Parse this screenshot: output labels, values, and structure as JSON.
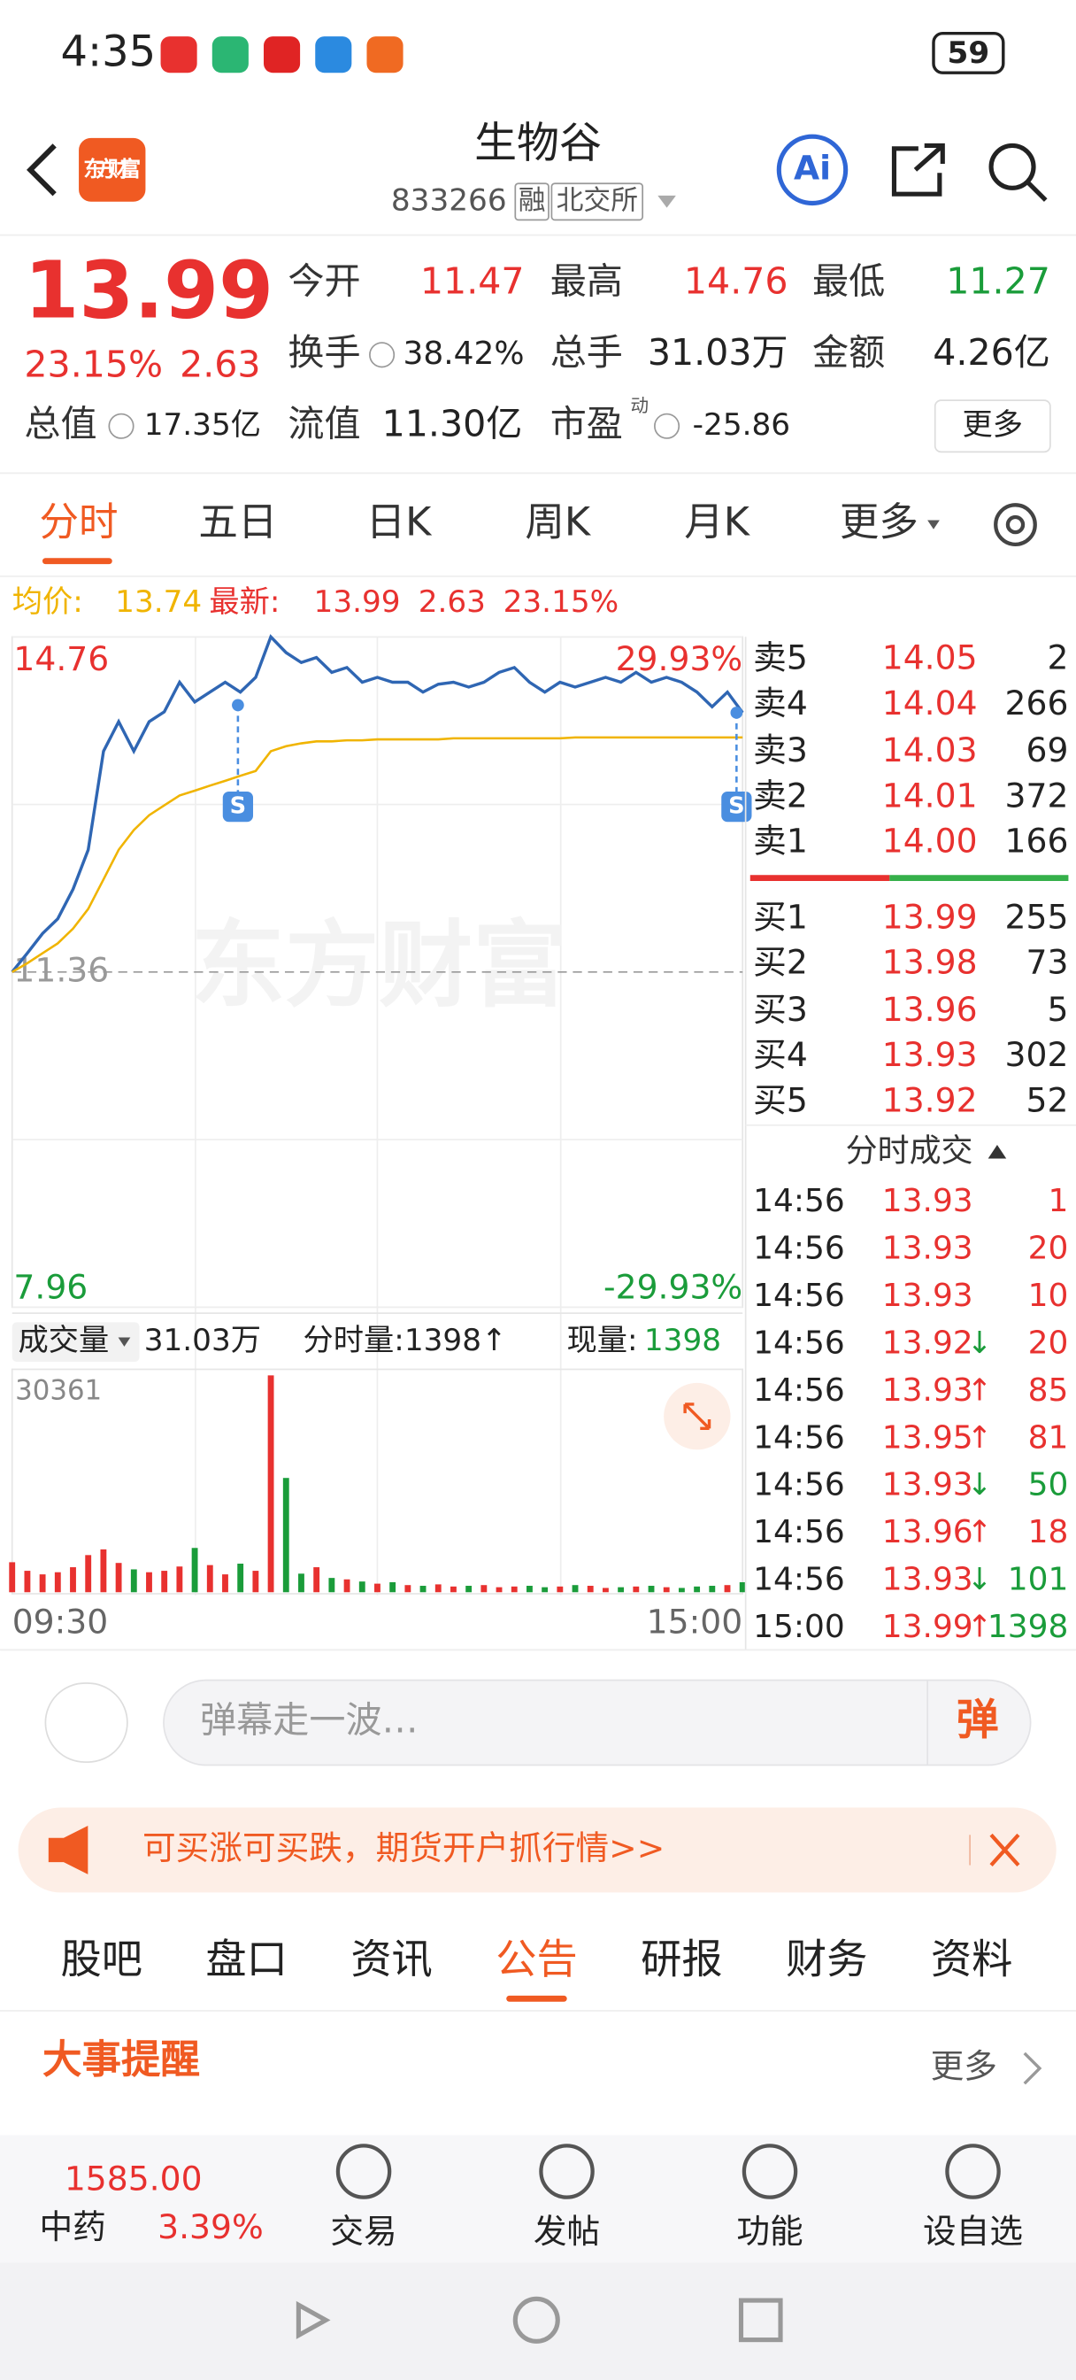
{
  "status_bar": {
    "time": "4:35",
    "battery": "59"
  },
  "header": {
    "logo": "东方财富",
    "title": "生物谷",
    "code": "833266",
    "tags": [
      "融",
      "北交所"
    ],
    "ai": "Ai"
  },
  "quote": {
    "price": "13.99",
    "change_pct": "23.15%",
    "change": "2.63",
    "fields": [
      {
        "label": "今开",
        "value": "11.47"
      },
      {
        "label": "最高",
        "value": "14.76"
      },
      {
        "label": "最低",
        "value": "11.27"
      },
      {
        "label": "换手",
        "value": "38.42%"
      },
      {
        "label": "总手",
        "value": "31.03万"
      },
      {
        "label": "金额",
        "value": "4.26亿"
      },
      {
        "label": "总值",
        "value": "17.35亿"
      },
      {
        "label": "流值",
        "value": "11.30亿"
      },
      {
        "label": "市盈",
        "sup": "动",
        "value": "-25.86"
      }
    ],
    "more": "更多"
  },
  "chart_tabs": [
    "分时",
    "五日",
    "日K",
    "周K",
    "月K",
    "更多"
  ],
  "summary": {
    "avg_label": "均价:",
    "avg": "13.74",
    "latest_label": "最新:",
    "latest": "13.99",
    "change": "2.63",
    "change_pct": "23.15%"
  },
  "chart_data": {
    "type": "line",
    "watermark": "东方财富",
    "x": [
      "09:30",
      null,
      null,
      null,
      null,
      null,
      null,
      null,
      null,
      null,
      null,
      null,
      null,
      null,
      null,
      null,
      null,
      null,
      null,
      null,
      null,
      null,
      null,
      null,
      null,
      null,
      null,
      null,
      null,
      null,
      null,
      null,
      null,
      null,
      null,
      null,
      null,
      null,
      null,
      null,
      null,
      null,
      null,
      null,
      null,
      null,
      null,
      null,
      "15:00"
    ],
    "ylim": [
      7.96,
      14.76
    ],
    "yticks": [
      14.76,
      11.36,
      7.96
    ],
    "y2lim": [
      -29.93,
      29.93
    ],
    "y2ticks": [
      {
        "value": 29.93,
        "label": "29.93%"
      },
      {
        "value": -29.93,
        "label": "-29.93%"
      }
    ],
    "signals": [
      "S",
      "S"
    ],
    "series": [
      {
        "color": "#2f66b3",
        "values": [
          11.36,
          11.55,
          11.75,
          11.9,
          12.2,
          12.6,
          13.6,
          13.9,
          13.6,
          13.9,
          14.0,
          14.3,
          14.1,
          14.2,
          14.3,
          14.2,
          14.35,
          14.76,
          14.6,
          14.5,
          14.55,
          14.4,
          14.45,
          14.3,
          14.35,
          14.3,
          14.3,
          14.2,
          14.28,
          14.3,
          14.25,
          14.3,
          14.4,
          14.45,
          14.3,
          14.2,
          14.3,
          14.25,
          14.3,
          14.35,
          14.3,
          14.4,
          14.3,
          14.35,
          14.3,
          14.2,
          14.05,
          14.2,
          13.99
        ]
      },
      {
        "color": "#f0b400",
        "values": [
          11.36,
          11.45,
          11.55,
          11.65,
          11.8,
          12.0,
          12.3,
          12.6,
          12.8,
          12.95,
          13.05,
          13.15,
          13.2,
          13.25,
          13.3,
          13.35,
          13.4,
          13.6,
          13.65,
          13.68,
          13.7,
          13.7,
          13.71,
          13.71,
          13.72,
          13.72,
          13.72,
          13.72,
          13.72,
          13.73,
          13.73,
          13.73,
          13.73,
          13.73,
          13.73,
          13.73,
          13.73,
          13.74,
          13.74,
          13.74,
          13.74,
          13.74,
          13.74,
          13.74,
          13.74,
          13.74,
          13.74,
          13.74,
          13.74
        ]
      }
    ]
  },
  "volume_chart": {
    "type": "bar",
    "label": "成交量",
    "total": "31.03万",
    "tick_label": "分时量:1398↑",
    "current_label": "现量:",
    "current": "1398",
    "ylim": [
      0,
      30361
    ],
    "yticks": [
      30361
    ],
    "up_color": "#e8312f",
    "down_color": "#1a9c3a",
    "values": [
      4200,
      3000,
      2500,
      2800,
      3500,
      5200,
      6000,
      4100,
      3200,
      2800,
      3000,
      3600,
      6200,
      3800,
      2500,
      4000,
      3000,
      30361,
      16000,
      2600,
      3500,
      2000,
      1800,
      1500,
      1200,
      1400,
      1000,
      900,
      1100,
      800,
      900,
      1000,
      700,
      800,
      900,
      700,
      800,
      1000,
      900,
      600,
      700,
      800,
      900,
      700,
      600,
      800,
      900,
      1000,
      1398
    ]
  },
  "order_book": {
    "asks": [
      {
        "label": "卖5",
        "price": "14.05",
        "volume": "2"
      },
      {
        "label": "卖4",
        "price": "14.04",
        "volume": "266"
      },
      {
        "label": "卖3",
        "price": "14.03",
        "volume": "69"
      },
      {
        "label": "卖2",
        "price": "14.01",
        "volume": "372"
      },
      {
        "label": "卖1",
        "price": "14.00",
        "volume": "166"
      }
    ],
    "bids": [
      {
        "label": "买1",
        "price": "13.99",
        "volume": "255"
      },
      {
        "label": "买2",
        "price": "13.98",
        "volume": "73"
      },
      {
        "label": "买3",
        "price": "13.96",
        "volume": "5"
      },
      {
        "label": "买4",
        "price": "13.93",
        "volume": "302"
      },
      {
        "label": "买5",
        "price": "13.92",
        "volume": "52"
      }
    ]
  },
  "trades": {
    "title": "分时成交",
    "rows": [
      {
        "time": "14:56",
        "price": "13.93",
        "volume": "1",
        "color": "#e8312f"
      },
      {
        "time": "14:56",
        "price": "13.93",
        "volume": "20",
        "color": "#e8312f"
      },
      {
        "time": "14:56",
        "price": "13.93",
        "volume": "10",
        "color": "#e8312f"
      },
      {
        "time": "14:56",
        "price": "13.92",
        "arrow": "↓",
        "volume": "20",
        "color": "#e8312f"
      },
      {
        "time": "14:56",
        "price": "13.93",
        "arrow": "↑",
        "volume": "85",
        "color": "#e8312f"
      },
      {
        "time": "14:56",
        "price": "13.95",
        "arrow": "↑",
        "volume": "81",
        "color": "#e8312f"
      },
      {
        "time": "14:56",
        "price": "13.93",
        "arrow": "↓",
        "volume": "50",
        "color": "#1a9c3a"
      },
      {
        "time": "14:56",
        "price": "13.96",
        "arrow": "↑",
        "volume": "18",
        "color": "#e8312f"
      },
      {
        "time": "14:56",
        "price": "13.93",
        "arrow": "↓",
        "volume": "101",
        "color": "#1a9c3a"
      },
      {
        "time": "15:00",
        "price": "13.99",
        "arrow": "↑",
        "volume": "1398",
        "color": "#1a9c3a"
      }
    ]
  },
  "input": {
    "placeholder": "弹幕走一波…",
    "button": "弹"
  },
  "banner": {
    "text": "可买涨可买跌，期货开户抓行情>>"
  },
  "info_tabs": {
    "items": [
      "股吧",
      "盘口",
      "资讯",
      "公告",
      "研报",
      "财务",
      "资料"
    ],
    "active": 3
  },
  "notice": {
    "title": "大事提醒",
    "more": "更多"
  },
  "bottom_bar": {
    "index_value": "1585.00",
    "index_name": "中药",
    "index_change": "3.39%",
    "nav": [
      "交易",
      "发帖",
      "功能",
      "设自选"
    ]
  }
}
